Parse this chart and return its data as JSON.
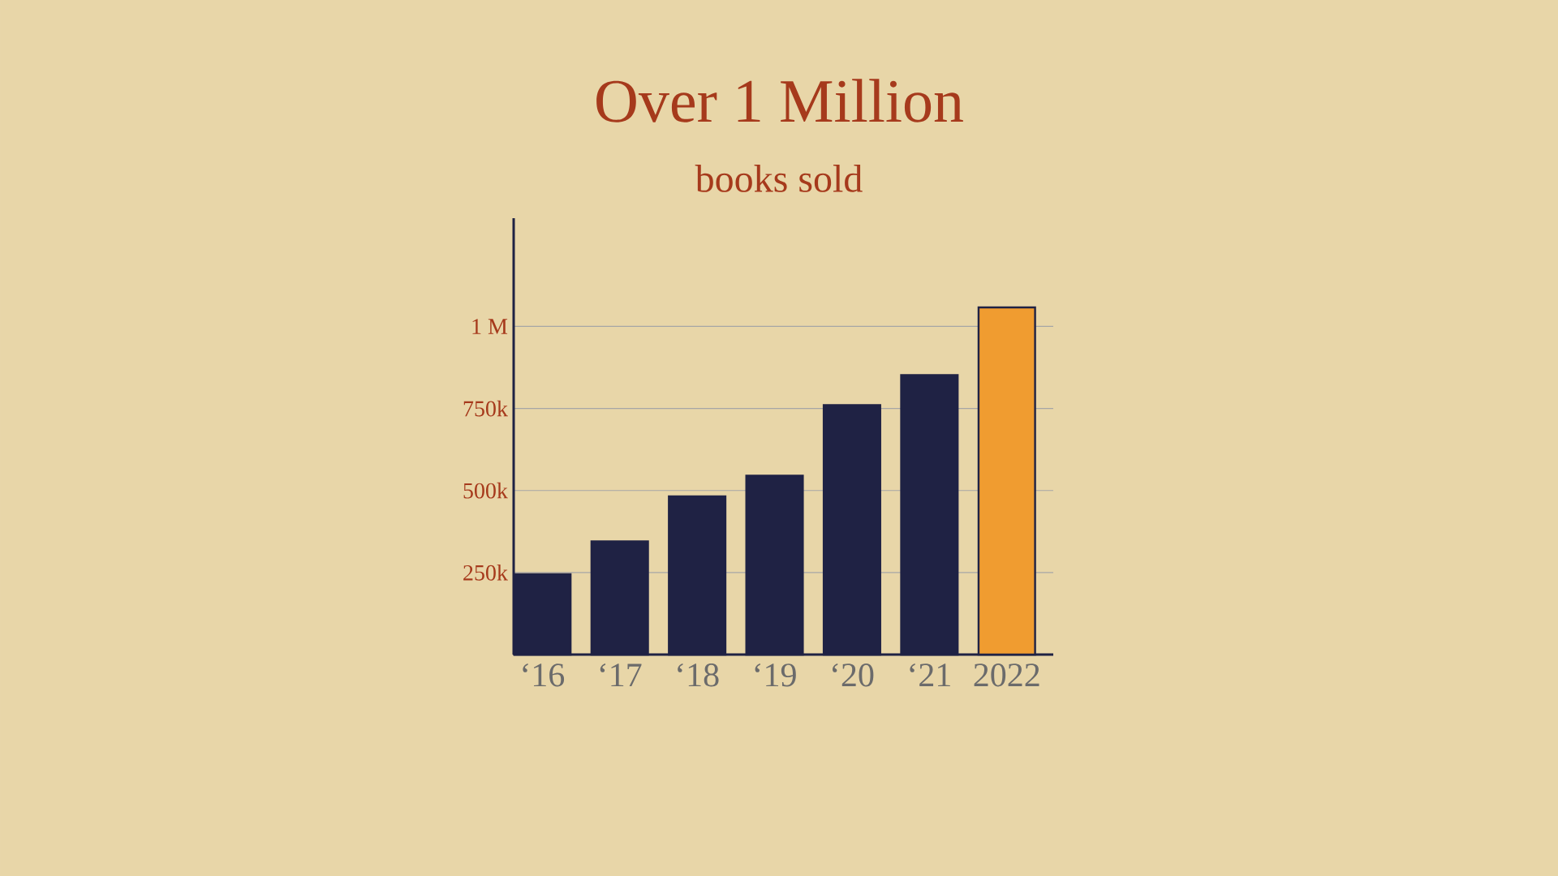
{
  "chart_data": {
    "type": "bar",
    "title": "Over 1 Million",
    "subtitle": "books sold",
    "categories": [
      "‘16",
      "‘17",
      "‘18",
      "‘19",
      "‘20",
      "‘21",
      "2022"
    ],
    "values": [
      245000,
      345000,
      482000,
      545000,
      760000,
      852000,
      1058000
    ],
    "colors": [
      "#1f2244",
      "#1f2244",
      "#1f2244",
      "#1f2244",
      "#1f2244",
      "#1f2244",
      "#f09c30"
    ],
    "ylim": [
      0,
      1330000
    ],
    "yticks": [
      {
        "value": 250000,
        "label": "250k"
      },
      {
        "value": 500000,
        "label": "500k"
      },
      {
        "value": 750000,
        "label": "750k"
      },
      {
        "value": 1000000,
        "label": "1 M"
      }
    ],
    "grid": "y"
  }
}
